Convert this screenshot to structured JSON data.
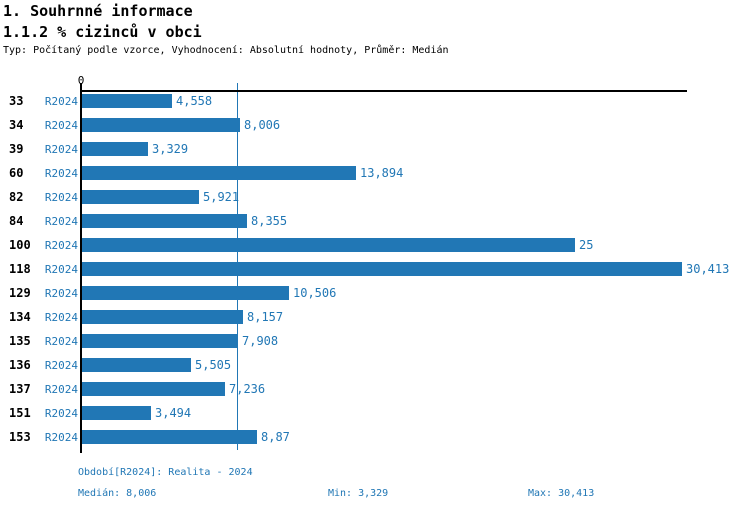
{
  "header": {
    "title1": "1. Souhrnné informace",
    "title2": "1.1.2 % cizinců v obci",
    "subtitle": "Typ: Počítaný podle vzorce, Vyhodnocení: Absolutní hodnoty, Průměr: Medián"
  },
  "chart_data": {
    "type": "bar",
    "orientation": "horizontal",
    "title": "1.1.2 % cizinců v obci",
    "axis_zero_label": "0",
    "series_label": "R2024",
    "categories": [
      "33",
      "34",
      "39",
      "60",
      "82",
      "84",
      "100",
      "118",
      "129",
      "134",
      "135",
      "136",
      "137",
      "151",
      "153"
    ],
    "values": [
      4.558,
      8.006,
      3.329,
      13.894,
      5.921,
      8.355,
      25,
      30.413,
      10.506,
      8.157,
      7.908,
      5.505,
      7.236,
      3.494,
      8.87
    ],
    "value_labels": [
      "4,558",
      "8,006",
      "3,329",
      "13,894",
      "5,921",
      "8,355",
      "25",
      "30,413",
      "10,506",
      "8,157",
      "7,908",
      "5,505",
      "7,236",
      "3,494",
      "8,87"
    ],
    "median": 8.006,
    "min": 3.329,
    "max": 30.413,
    "xlim": [
      0,
      30.72
    ],
    "grid": false,
    "legend": "none",
    "bar_color": "#2177b5",
    "median_line_color": "#2177b5"
  },
  "footer": {
    "period": "Období[R2024]: Realita - 2024",
    "median": "Medián: 8,006",
    "min": "Min: 3,329",
    "max": "Max: 30,413"
  }
}
